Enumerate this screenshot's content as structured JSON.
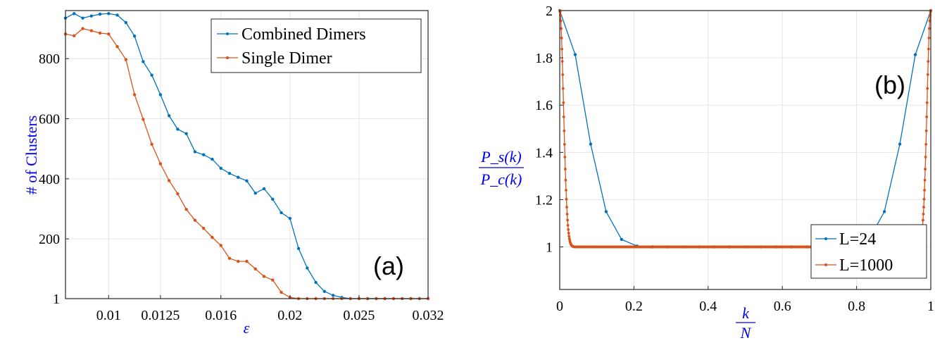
{
  "colors": {
    "blue": "#0072BD",
    "orange": "#D95319",
    "label": "#0000ee"
  },
  "chart_data": [
    {
      "type": "line",
      "panel_label": "(a)",
      "xlabel": "ε",
      "ylabel": "# of Clusters",
      "xticks": [
        "0.01",
        "0.0125",
        "0.016",
        "0.02",
        "0.025",
        "0.032"
      ],
      "yticks": [
        "1",
        "200",
        "400",
        "600",
        "800"
      ],
      "ylim": [
        1,
        960
      ],
      "grid": true,
      "legend": "top-right",
      "x_index": [
        0,
        1,
        2,
        3,
        4,
        5,
        6,
        7,
        8,
        9,
        10,
        11,
        12,
        13,
        14,
        15,
        16,
        17,
        18,
        19,
        20,
        21,
        22,
        23,
        24,
        25,
        26,
        27,
        28,
        29,
        30,
        31,
        32,
        33,
        34,
        35,
        36,
        37,
        38,
        39,
        40,
        41,
        42
      ],
      "series": [
        {
          "name": "Combined Dimers",
          "color": "#0072BD",
          "values": [
            935,
            950,
            935,
            942,
            948,
            950,
            945,
            920,
            875,
            790,
            745,
            680,
            610,
            565,
            550,
            490,
            480,
            465,
            435,
            418,
            405,
            393,
            352,
            367,
            332,
            287,
            268,
            168,
            103,
            55,
            25,
            12,
            5,
            1,
            1,
            1,
            1,
            1,
            1,
            1,
            1,
            1,
            1
          ]
        },
        {
          "name": "Single Dimer",
          "color": "#D95319",
          "values": [
            882,
            876,
            900,
            893,
            885,
            882,
            840,
            797,
            680,
            598,
            515,
            450,
            394,
            350,
            298,
            262,
            235,
            205,
            178,
            135,
            125,
            125,
            100,
            75,
            63,
            22,
            5,
            1,
            1,
            1,
            1,
            1,
            1,
            1,
            1,
            1,
            1,
            1,
            1,
            1,
            1,
            1,
            1
          ]
        }
      ]
    },
    {
      "type": "line",
      "panel_label": "(b)",
      "xlabel_num": "k",
      "xlabel_den": "N",
      "ylabel_num": "P_s(k)",
      "ylabel_den": "P_c(k)",
      "xlim": [
        0,
        1
      ],
      "ylim": [
        0.82,
        2
      ],
      "xticks": [
        "0",
        "0.2",
        "0.4",
        "0.6",
        "0.8",
        "1"
      ],
      "yticks": [
        "1",
        "1.2",
        "1.4",
        "1.6",
        "1.8",
        "2"
      ],
      "grid": true,
      "legend": "bottom-right",
      "series": [
        {
          "name": "L=24",
          "color": "#0072BD",
          "L": 24
        },
        {
          "name": "L=1000",
          "color": "#D95319",
          "L": 1000
        }
      ]
    }
  ]
}
